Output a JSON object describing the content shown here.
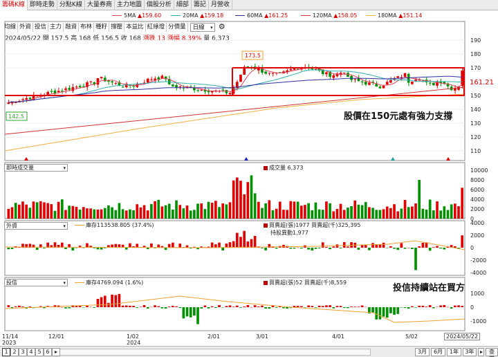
{
  "tabs": [
    "籌碼K線",
    "即時走勢",
    "分點K線",
    "大量券商",
    "主力地圖",
    "個股分析",
    "細部",
    "籌記",
    "月營收"
  ],
  "active_tab": 0,
  "ma_legend": [
    {
      "label": "5MA",
      "value": "▲159.60",
      "color": "#e0405a"
    },
    {
      "label": "20MA",
      "value": "▲159.18",
      "color": "#30b0b0"
    },
    {
      "label": "60MA",
      "value": "▲161.25",
      "color": "#3030a0"
    },
    {
      "label": "120MA",
      "value": "▲158.05",
      "color": "#d03030"
    },
    {
      "label": "180MA",
      "value": "▲151.14",
      "color": "#f0b040"
    }
  ],
  "toolbar": [
    "均線",
    "外資",
    "投信",
    "主力",
    "融資",
    "布林",
    "種籽",
    "撐壓",
    "本益比",
    "紅綠燈",
    "分價量"
  ],
  "period_select": "日線",
  "ohlc": {
    "date": "2024/05/22",
    "open_label": "開",
    "open": "157.5",
    "high_label": "高",
    "high": "168",
    "low_label": "低",
    "low": "156.5",
    "close_label": "收",
    "close": "168",
    "change": "漲跌 13",
    "change_pct": "漲幅 8.39%",
    "volume": "量 6,373"
  },
  "price_axis": [
    "190",
    "180",
    "170",
    "161.21",
    "150",
    "140",
    "130",
    "120",
    "110"
  ],
  "last_price": "161.21",
  "high_marker": "173.5",
  "low_marker": "142.5",
  "annotation_support": "股價在150元處有強力支撐",
  "annotation_trust": "投信持續站在買方",
  "volume_panel": {
    "selector": "即時成交量",
    "info": "成交量 6,373",
    "axis": [
      "10000",
      "8000",
      "6000",
      "4000",
      "2000",
      "0"
    ]
  },
  "foreign_panel": {
    "selector": "外資",
    "inventory": "庫存113538.805 (37.4%)",
    "info": "買賣超(張)1977 買賣超(千)325,395",
    "info2": "持股異動1,977",
    "axis": [
      "4000",
      "2000",
      "0",
      "-2000",
      "-4000"
    ]
  },
  "trust_panel": {
    "selector": "投信",
    "inventory": "庫存4769.094 (1.6%)",
    "info": "買賣超(張)52 買賣超(千)8,559",
    "axis": [
      "1000",
      "0",
      "-1000"
    ]
  },
  "x_axis": [
    {
      "label": "11/14",
      "sub": "2023"
    },
    {
      "label": "12/01",
      "sub": ""
    },
    {
      "label": "1/02",
      "sub": "2024"
    },
    {
      "label": "2/01",
      "sub": ""
    },
    {
      "label": "3/01",
      "sub": ""
    },
    {
      "label": "4/01",
      "sub": ""
    },
    {
      "label": "5/02",
      "sub": ""
    }
  ],
  "current_date": "2024/05/22",
  "pages": [
    "1",
    "2",
    "3",
    "4",
    "5",
    "6",
    "▸"
  ],
  "ranges": [
    "3月",
    "6月",
    "1年",
    "3年",
    "▸",
    "查閱"
  ]
}
